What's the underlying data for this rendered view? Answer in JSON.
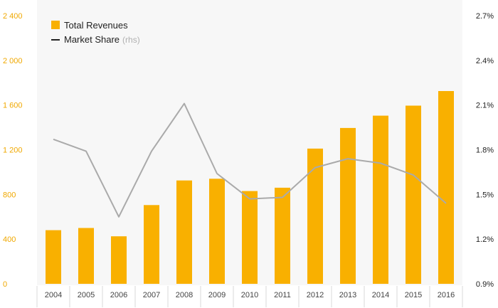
{
  "chart_data": {
    "type": "bar",
    "categories": [
      "2004",
      "2005",
      "2006",
      "2007",
      "2008",
      "2009",
      "2010",
      "2011",
      "2012",
      "2013",
      "2014",
      "2015",
      "2016"
    ],
    "series": [
      {
        "name": "Total Revenues",
        "type": "bar",
        "axis": "left",
        "values": [
          480,
          500,
          425,
          705,
          925,
          940,
          830,
          860,
          1210,
          1395,
          1505,
          1595,
          1725
        ]
      },
      {
        "name": "Market Share",
        "type": "line",
        "axis": "right",
        "values": [
          1.87,
          1.79,
          1.35,
          1.79,
          2.11,
          1.64,
          1.47,
          1.48,
          1.68,
          1.74,
          1.71,
          1.63,
          1.44
        ]
      }
    ],
    "y_left": {
      "ylim": [
        0,
        2400
      ],
      "ticks": [
        0,
        400,
        800,
        1200,
        1600,
        2000,
        2400
      ],
      "tick_labels": [
        "0",
        "400",
        "800",
        "1 200",
        "1 600",
        "2 000",
        "2 400"
      ]
    },
    "y_right": {
      "ylim": [
        0.9,
        2.7
      ],
      "ticks": [
        0.9,
        1.2,
        1.5,
        1.8,
        2.1,
        2.4,
        2.7
      ],
      "tick_labels": [
        "0.9%",
        "1.2%",
        "1.5%",
        "1.8%",
        "2.1%",
        "2.4%",
        "2.7%"
      ]
    },
    "legend": {
      "placement": "top-left",
      "items": [
        {
          "label": "Total Revenues",
          "note": ""
        },
        {
          "label": "Market Share",
          "note": "(rhs)"
        }
      ]
    },
    "grid": false,
    "colors": {
      "bar": "#f9b000",
      "line": "#aaaaaa",
      "plot_bg": "#f7f7f7",
      "left_ticks": "#f0a800",
      "legend_line": "#222222"
    }
  }
}
